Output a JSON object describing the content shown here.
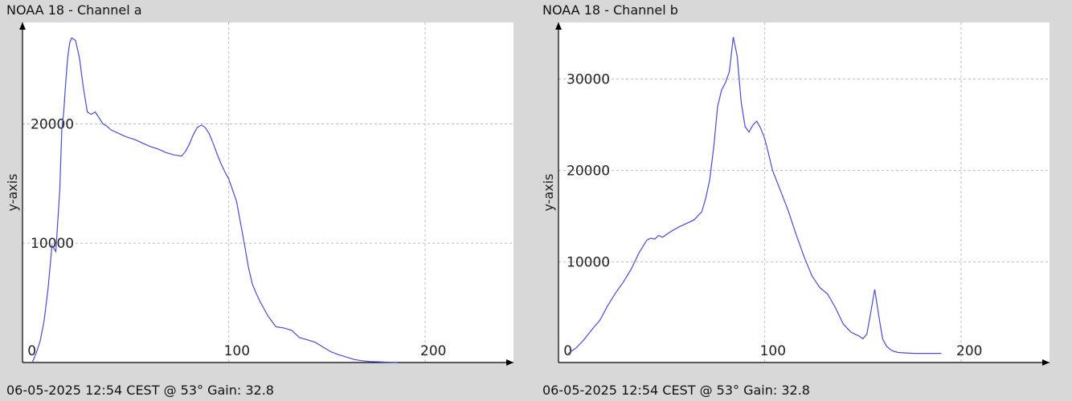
{
  "chart_data": [
    {
      "type": "line",
      "title": "NOAA 18 - Channel a",
      "caption": "06-05-2025 12:54 CEST @ 53° Gain: 32.8",
      "xlabel": "",
      "ylabel": "y-axis",
      "xlim": [
        -5,
        245
      ],
      "ylim": [
        0,
        28500
      ],
      "xticks": [
        0,
        100,
        200
      ],
      "yticks": [
        10000,
        20000
      ],
      "grid": true,
      "series_color": "#4b4bd0",
      "series": [
        {
          "x": [
            0,
            2,
            4,
            6,
            8,
            10,
            12,
            14,
            15,
            16,
            17,
            18,
            19,
            20,
            22,
            24,
            26,
            28,
            30,
            32,
            34,
            36,
            38,
            40,
            44,
            48,
            52,
            56,
            60,
            64,
            68,
            72,
            76,
            78,
            80,
            82,
            84,
            86,
            88,
            90,
            92,
            94,
            96,
            98,
            100,
            104,
            108,
            110,
            112,
            114,
            116,
            118,
            120,
            124,
            128,
            132,
            136,
            140,
            144,
            148,
            150,
            152,
            156,
            160,
            164,
            168,
            172,
            176,
            180,
            184,
            186
          ],
          "values": [
            0,
            800,
            1800,
            3500,
            6200,
            9800,
            9300,
            14500,
            19500,
            21000,
            23500,
            25500,
            26800,
            27200,
            27000,
            25500,
            23000,
            21000,
            20800,
            21000,
            20500,
            20000,
            19800,
            19500,
            19200,
            18900,
            18700,
            18400,
            18100,
            17900,
            17600,
            17400,
            17300,
            17700,
            18300,
            19100,
            19700,
            19900,
            19700,
            19200,
            18400,
            17500,
            16700,
            16000,
            15400,
            13500,
            9900,
            8000,
            6600,
            5800,
            5100,
            4500,
            3900,
            3000,
            2900,
            2700,
            2100,
            1900,
            1700,
            1300,
            1100,
            900,
            650,
            450,
            250,
            150,
            80,
            60,
            30,
            10,
            0
          ]
        }
      ]
    },
    {
      "type": "line",
      "title": "NOAA 18 - Channel b",
      "caption": "06-05-2025 12:54 CEST @ 53° Gain: 32.8",
      "xlabel": "",
      "ylabel": "y-axis",
      "xlim": [
        -5,
        245
      ],
      "ylim": [
        -1000,
        36200
      ],
      "xticks": [
        0,
        100,
        200
      ],
      "yticks": [
        10000,
        20000,
        30000
      ],
      "grid": true,
      "series_color": "#4b4bd0",
      "series": [
        {
          "x": [
            0,
            4,
            8,
            12,
            16,
            20,
            24,
            28,
            32,
            36,
            40,
            42,
            44,
            46,
            48,
            52,
            56,
            60,
            64,
            68,
            70,
            72,
            74,
            76,
            78,
            80,
            82,
            84,
            86,
            88,
            90,
            92,
            94,
            96,
            98,
            100,
            102,
            104,
            108,
            112,
            116,
            120,
            124,
            128,
            132,
            136,
            140,
            144,
            148,
            150,
            152,
            154,
            156,
            158,
            160,
            162,
            164,
            166,
            168,
            172,
            176,
            180,
            184,
            188,
            190
          ],
          "values": [
            0,
            600,
            1500,
            2600,
            3600,
            5200,
            6600,
            7800,
            9200,
            11000,
            12400,
            12600,
            12500,
            12900,
            12700,
            13300,
            13800,
            14200,
            14600,
            15500,
            17000,
            19000,
            22500,
            27000,
            28800,
            29600,
            30800,
            34600,
            32500,
            27500,
            24800,
            24200,
            25000,
            25400,
            24600,
            23500,
            21800,
            20000,
            17800,
            15600,
            13000,
            10600,
            8500,
            7200,
            6500,
            5000,
            3200,
            2300,
            1900,
            1600,
            2100,
            4500,
            7000,
            4200,
            1600,
            800,
            400,
            200,
            100,
            40,
            0,
            0,
            0,
            0,
            0
          ]
        }
      ]
    }
  ]
}
